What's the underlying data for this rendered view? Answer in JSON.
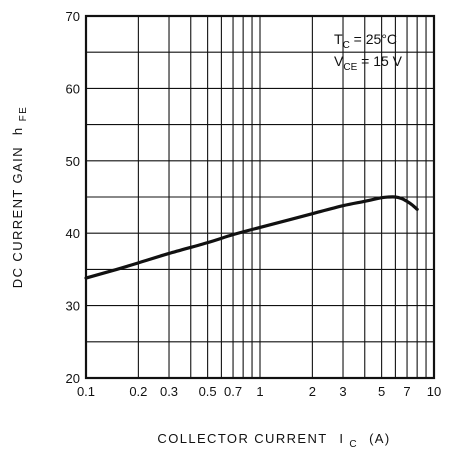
{
  "chart_data": {
    "type": "line",
    "x_scale": "log",
    "y_scale": "linear",
    "xlim": [
      0.1,
      10
    ],
    "ylim": [
      20,
      70
    ],
    "grid": true,
    "xlabel": "COLLECTOR CURRENT",
    "xlabel_symbol": "I",
    "xlabel_sub": "C",
    "xlabel_unit": "(A)",
    "ylabel": "DC CURRENT GAIN",
    "ylabel_symbol": "h",
    "ylabel_sub": "FE",
    "x_ticks": [
      {
        "value": 0.1,
        "label": "0.1"
      },
      {
        "value": 0.2,
        "label": "0.2"
      },
      {
        "value": 0.3,
        "label": "0.3"
      },
      {
        "value": 0.5,
        "label": "0.5"
      },
      {
        "value": 0.7,
        "label": "0.7"
      },
      {
        "value": 1,
        "label": "1"
      },
      {
        "value": 2,
        "label": "2"
      },
      {
        "value": 3,
        "label": "3"
      },
      {
        "value": 5,
        "label": "5"
      },
      {
        "value": 7,
        "label": "7"
      },
      {
        "value": 10,
        "label": "10"
      }
    ],
    "x_minor_gridlines": [
      0.4,
      0.6,
      0.8,
      0.9,
      4,
      6,
      8,
      9
    ],
    "y_ticks": [
      {
        "value": 20,
        "label": "20"
      },
      {
        "value": 30,
        "label": "30"
      },
      {
        "value": 40,
        "label": "40"
      },
      {
        "value": 50,
        "label": "50"
      },
      {
        "value": 60,
        "label": "60"
      },
      {
        "value": 70,
        "label": "70"
      }
    ],
    "y_minor_gridlines": [
      25,
      35,
      45,
      55,
      65
    ],
    "annotations": [
      {
        "symbol": "T",
        "sub": "C",
        "text": " = 25°C"
      },
      {
        "symbol": "V",
        "sub": "CE",
        "text": " = 15 V"
      }
    ],
    "series": [
      {
        "x": [
          0.1,
          0.15,
          0.2,
          0.3,
          0.5,
          0.7,
          1,
          1.5,
          2,
          3,
          4,
          5,
          5.5,
          6,
          6.5,
          7,
          7.5,
          8
        ],
        "y": [
          33.8,
          35.0,
          35.9,
          37.2,
          38.7,
          39.8,
          40.8,
          41.9,
          42.7,
          43.8,
          44.4,
          44.9,
          45.0,
          45.0,
          44.8,
          44.4,
          43.9,
          43.3
        ]
      }
    ]
  }
}
